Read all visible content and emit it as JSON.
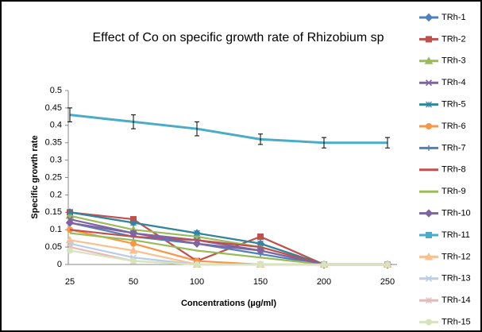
{
  "chart_data": {
    "type": "line",
    "title": "Effect of Co on specific growth rate of Rhizobium sp",
    "xlabel": "Concentrations (µg/ml)",
    "ylabel": "Specific growth rate",
    "categories": [
      25,
      50,
      100,
      150,
      200,
      250
    ],
    "ylim": [
      0,
      0.5
    ],
    "yticks": [
      0,
      0.05,
      0.1,
      0.15,
      0.2,
      0.25,
      0.3,
      0.35,
      0.4,
      0.45,
      0.5
    ],
    "grid": false,
    "legend": "right",
    "series": [
      {
        "name": "TRh-1",
        "color": "#4f81bd",
        "marker": "diamond",
        "values": [
          0.15,
          0.12,
          0.09,
          0.06,
          0,
          0
        ]
      },
      {
        "name": "TRh-2",
        "color": "#c0504d",
        "marker": "square",
        "values": [
          0.15,
          0.13,
          0.01,
          0.08,
          0,
          0
        ]
      },
      {
        "name": "TRh-3",
        "color": "#9bbb59",
        "marker": "triangle",
        "values": [
          0.14,
          0.1,
          0.08,
          0.05,
          0,
          0
        ]
      },
      {
        "name": "TRh-4",
        "color": "#8064a2",
        "marker": "x",
        "values": [
          0.13,
          0.09,
          0.07,
          0.04,
          0,
          0
        ]
      },
      {
        "name": "TRh-5",
        "color": "#31859c",
        "marker": "star",
        "values": [
          0.15,
          0.12,
          0.09,
          0.06,
          0,
          0
        ]
      },
      {
        "name": "TRh-6",
        "color": "#f79646",
        "marker": "circle",
        "values": [
          0.1,
          0.06,
          0.01,
          0,
          0,
          0
        ]
      },
      {
        "name": "TRh-7",
        "color": "#4f81bd",
        "marker": "plus",
        "values": [
          0.12,
          0.08,
          0.06,
          0.03,
          0,
          0
        ]
      },
      {
        "name": "TRh-8",
        "color": "#c0504d",
        "marker": "none",
        "values": [
          0.1,
          0.08,
          0.07,
          0.05,
          0,
          0
        ]
      },
      {
        "name": "TRh-9",
        "color": "#9bbb59",
        "marker": "none",
        "values": [
          0.09,
          0.07,
          0.04,
          0.02,
          0,
          0
        ]
      },
      {
        "name": "TRh-10",
        "color": "#8064a2",
        "marker": "diamond",
        "values": [
          0.12,
          0.09,
          0.06,
          0.04,
          0,
          0
        ]
      },
      {
        "name": "TRh-11",
        "color": "#4bacc6",
        "marker": "square",
        "values": [
          0.43,
          0.41,
          0.39,
          0.36,
          0.35,
          0.35
        ],
        "errors": [
          0.02,
          0.02,
          0.02,
          0.015,
          0.015,
          0.015
        ]
      },
      {
        "name": "TRh-12",
        "color": "#fac090",
        "marker": "triangle",
        "values": [
          0.07,
          0.04,
          0,
          0,
          0,
          0
        ]
      },
      {
        "name": "TRh-13",
        "color": "#b9cde5",
        "marker": "x",
        "values": [
          0.06,
          0.02,
          0,
          0,
          0,
          0
        ]
      },
      {
        "name": "TRh-14",
        "color": "#e6b9b8",
        "marker": "star",
        "values": [
          0.05,
          0.01,
          0,
          0,
          0,
          0
        ]
      },
      {
        "name": "TRh-15",
        "color": "#d7e4bd",
        "marker": "circle",
        "values": [
          0.04,
          0.01,
          0,
          0,
          0,
          0
        ]
      }
    ]
  }
}
